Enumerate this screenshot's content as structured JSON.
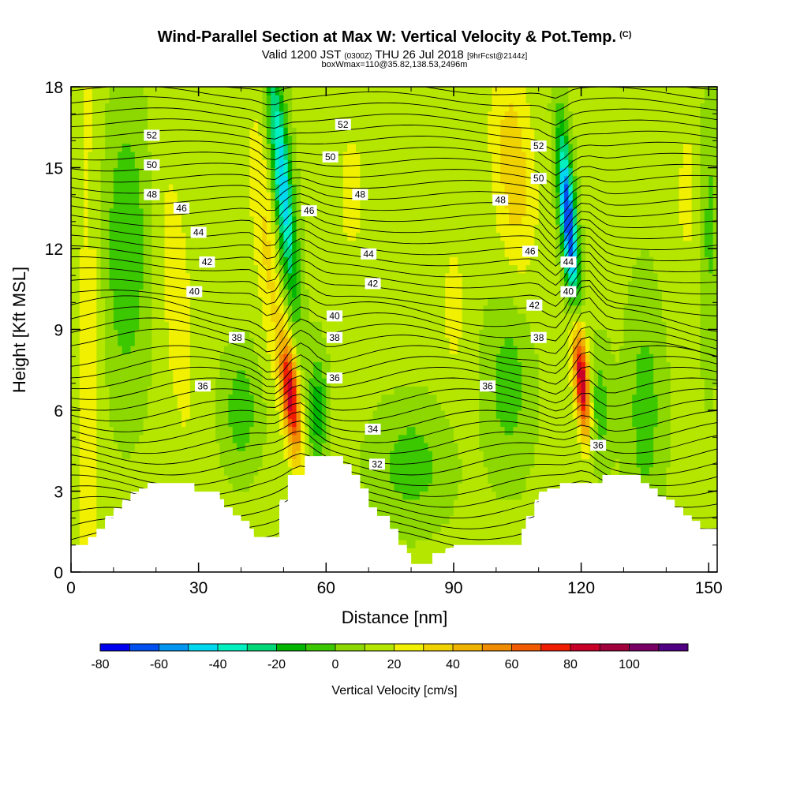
{
  "title": {
    "main": "Wind-Parallel Section at Max W: Vertical Velocity & Pot.Temp.",
    "copyright": "(C)",
    "valid_prefix": "Valid 1200 JST",
    "valid_utc": "(0300Z)",
    "valid_date": "THU 26 Jul 2018",
    "forecast": "[9hrFcst@2144z]",
    "box": "boxWmax=110@35.82,138.53,2496m"
  },
  "chart_data": {
    "type": "heatmap",
    "xlabel": "Distance [nm]",
    "ylabel": "Height [Kft MSL]",
    "xlim": [
      0,
      152
    ],
    "ylim": [
      0,
      18
    ],
    "x_ticks": [
      0,
      30,
      60,
      90,
      120,
      150
    ],
    "y_ticks": [
      0,
      3,
      6,
      9,
      12,
      15,
      18
    ],
    "colorbar": {
      "title": "Vertical Velocity [cm/s]",
      "levels": [
        -80,
        -70,
        -60,
        -50,
        -40,
        -30,
        -20,
        -10,
        0,
        10,
        20,
        30,
        40,
        50,
        60,
        70,
        80,
        90,
        100,
        110
      ],
      "tick_labels": [
        "-80",
        "-60",
        "-40",
        "-20",
        "0",
        "20",
        "40",
        "60",
        "80",
        "100"
      ],
      "colors": [
        "#0000f0",
        "#0050f0",
        "#0096f0",
        "#00d8f0",
        "#00f0c0",
        "#00d878",
        "#00b400",
        "#3cc800",
        "#8cd800",
        "#b4e600",
        "#f0f000",
        "#f0d200",
        "#f0b400",
        "#f08c00",
        "#f05a00",
        "#f01e00",
        "#c80028",
        "#a0003c",
        "#780064",
        "#500082"
      ]
    },
    "wind_updrafts": [
      {
        "x": 52,
        "z": 6.5,
        "w_cm_s": 80
      },
      {
        "x": 120,
        "z": 7.5,
        "w_cm_s": 90
      }
    ],
    "wind_downdrafts": [
      {
        "x": 50,
        "z": 14,
        "w_cm_s": -40
      },
      {
        "x": 117,
        "z": 13,
        "w_cm_s": -70
      }
    ],
    "terrain_kft": [
      [
        0,
        1.0
      ],
      [
        3,
        1.0
      ],
      [
        4,
        1.3
      ],
      [
        6,
        1.6
      ],
      [
        8,
        2.0
      ],
      [
        10,
        2.3
      ],
      [
        12,
        2.6
      ],
      [
        14,
        2.9
      ],
      [
        16,
        3.1
      ],
      [
        18,
        3.3
      ],
      [
        28,
        3.3
      ],
      [
        29,
        2.9
      ],
      [
        35,
        2.7
      ],
      [
        36,
        2.4
      ],
      [
        38,
        2.1
      ],
      [
        40,
        1.9
      ],
      [
        42,
        1.6
      ],
      [
        43,
        1.3
      ],
      [
        48,
        1.3
      ],
      [
        49,
        2.6
      ],
      [
        50,
        2.6
      ],
      [
        51,
        3.6
      ],
      [
        54,
        3.6
      ],
      [
        55,
        4.3
      ],
      [
        62,
        4.3
      ],
      [
        64,
        4.0
      ],
      [
        66,
        3.6
      ],
      [
        68,
        3.1
      ],
      [
        70,
        2.4
      ],
      [
        72,
        2.0
      ],
      [
        75,
        1.6
      ],
      [
        77,
        1.0
      ],
      [
        79,
        0.7
      ],
      [
        80,
        0.3
      ],
      [
        84,
        0.3
      ],
      [
        85,
        0.7
      ],
      [
        88,
        0.8
      ],
      [
        89,
        0.9
      ],
      [
        90,
        1.0
      ],
      [
        91,
        1.0
      ],
      [
        92,
        1.0
      ],
      [
        105,
        1.0
      ],
      [
        106,
        1.6
      ],
      [
        107,
        2.0
      ],
      [
        109,
        2.6
      ],
      [
        110,
        2.9
      ],
      [
        112,
        3.1
      ],
      [
        115,
        3.3
      ],
      [
        124,
        3.3
      ],
      [
        125,
        3.6
      ],
      [
        132,
        3.6
      ],
      [
        134,
        3.3
      ],
      [
        136,
        3.1
      ],
      [
        138,
        2.8
      ],
      [
        140,
        2.6
      ],
      [
        142,
        2.4
      ],
      [
        144,
        2.1
      ],
      [
        146,
        1.9
      ],
      [
        148,
        1.6
      ],
      [
        152,
        1.6
      ]
    ],
    "theta_contour_labels": [
      {
        "text": "52",
        "x": 19,
        "z": 16.2
      },
      {
        "text": "50",
        "x": 19,
        "z": 15.1
      },
      {
        "text": "48",
        "x": 19,
        "z": 14.0
      },
      {
        "text": "46",
        "x": 26,
        "z": 13.5
      },
      {
        "text": "44",
        "x": 30,
        "z": 12.6
      },
      {
        "text": "42",
        "x": 32,
        "z": 11.5
      },
      {
        "text": "40",
        "x": 29,
        "z": 10.4
      },
      {
        "text": "38",
        "x": 39,
        "z": 8.7
      },
      {
        "text": "36",
        "x": 31,
        "z": 6.9
      },
      {
        "text": "52",
        "x": 64,
        "z": 16.6
      },
      {
        "text": "50",
        "x": 61,
        "z": 15.4
      },
      {
        "text": "46",
        "x": 56,
        "z": 13.4
      },
      {
        "text": "48",
        "x": 68,
        "z": 14.0
      },
      {
        "text": "44",
        "x": 70,
        "z": 11.8
      },
      {
        "text": "42",
        "x": 71,
        "z": 10.7
      },
      {
        "text": "40",
        "x": 62,
        "z": 9.5
      },
      {
        "text": "38",
        "x": 62,
        "z": 8.7
      },
      {
        "text": "36",
        "x": 62,
        "z": 7.2
      },
      {
        "text": "34",
        "x": 71,
        "z": 5.3
      },
      {
        "text": "32",
        "x": 72,
        "z": 4.0
      },
      {
        "text": "52",
        "x": 110,
        "z": 15.8
      },
      {
        "text": "50",
        "x": 110,
        "z": 14.6
      },
      {
        "text": "48",
        "x": 101,
        "z": 13.8
      },
      {
        "text": "46",
        "x": 108,
        "z": 11.9
      },
      {
        "text": "44",
        "x": 117,
        "z": 11.5
      },
      {
        "text": "42",
        "x": 109,
        "z": 9.9
      },
      {
        "text": "40",
        "x": 117,
        "z": 10.4
      },
      {
        "text": "38",
        "x": 110,
        "z": 8.7
      },
      {
        "text": "36",
        "x": 98,
        "z": 6.9
      },
      {
        "text": "36",
        "x": 124,
        "z": 4.7
      }
    ]
  }
}
